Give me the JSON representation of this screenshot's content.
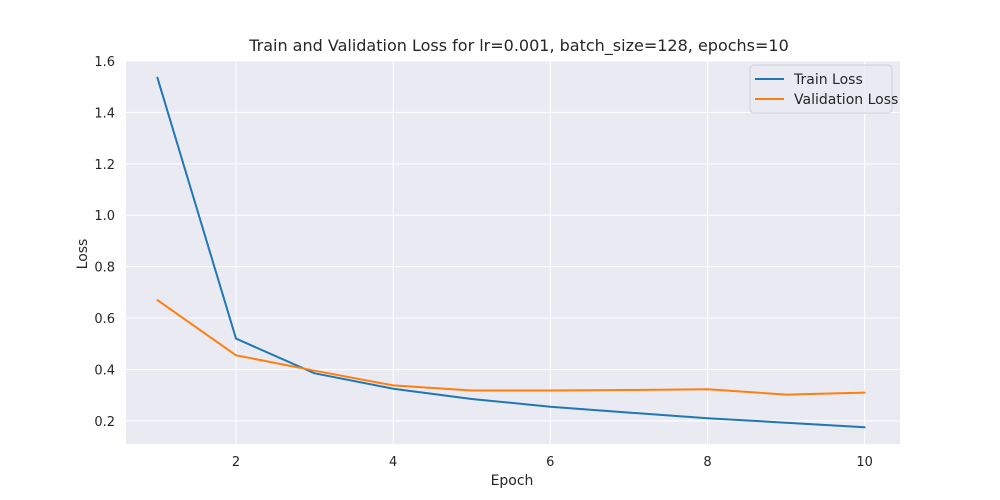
{
  "chart_data": {
    "type": "line",
    "title": "Train and Validation Loss for lr=0.001, batch_size=128, epochs=10",
    "xlabel": "Epoch",
    "ylabel": "Loss",
    "xlim": [
      0.6,
      10.45
    ],
    "ylim": [
      0.11,
      1.6
    ],
    "x_ticks": [
      2,
      4,
      6,
      8,
      10
    ],
    "y_ticks": [
      0.2,
      0.4,
      0.6,
      0.8,
      1.0,
      1.2,
      1.4,
      1.6
    ],
    "grid": true,
    "legend_position": "top-right",
    "x": [
      1,
      2,
      3,
      4,
      5,
      6,
      7,
      8,
      9,
      10
    ],
    "series": [
      {
        "name": "Train Loss",
        "color": "#1f77b4",
        "values": [
          1.535,
          0.52,
          0.385,
          0.325,
          0.285,
          0.255,
          0.232,
          0.21,
          0.193,
          0.175
        ]
      },
      {
        "name": "Validation Loss",
        "color": "#ff7f0e",
        "values": [
          0.67,
          0.455,
          0.395,
          0.338,
          0.318,
          0.318,
          0.32,
          0.323,
          0.302,
          0.31
        ]
      }
    ],
    "colors": {
      "plot_background": "#eaeaf2",
      "grid": "#ffffff",
      "text": "#262626"
    }
  }
}
